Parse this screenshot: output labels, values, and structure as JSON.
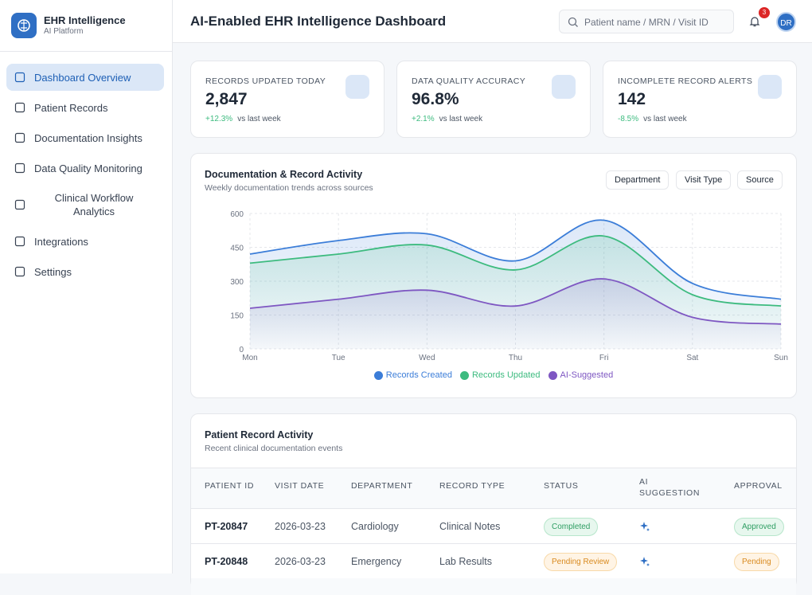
{
  "sidebar": {
    "brand": "EHR Intelligence",
    "subtitle": "AI Platform",
    "nav": [
      "Dashboard Overview",
      "Patient Records",
      "Documentation Insights",
      "Data Quality Monitoring",
      "Clinical Workflow Analytics",
      "Integrations",
      "Settings"
    ]
  },
  "header": {
    "title": "AI-Enabled EHR Intelligence Dashboard",
    "search_placeholder": "Patient name / MRN / Visit ID",
    "notifications": "3",
    "avatar": "DR"
  },
  "kpis": [
    {
      "label": "RECORDS UPDATED TODAY",
      "value": "2,847",
      "change": "+12.3%",
      "period": "vs last week"
    },
    {
      "label": "DATA QUALITY ACCURACY",
      "value": "96.8%",
      "change": "+2.1%",
      "period": "vs last week"
    },
    {
      "label": "INCOMPLETE RECORD ALERTS",
      "value": "142",
      "change": "-8.5%",
      "period": "vs last week"
    }
  ],
  "chart_data": {
    "type": "line",
    "title": "Documentation & Record Activity",
    "subtitle": "Weekly documentation trends across sources",
    "filters": [
      "Department",
      "Visit Type",
      "Source"
    ],
    "categories": [
      "Mon",
      "Tue",
      "Wed",
      "Thu",
      "Fri",
      "Sat",
      "Sun"
    ],
    "series": [
      {
        "name": "Records Created",
        "color": "#3b7dd8",
        "values": [
          420,
          480,
          510,
          390,
          570,
          290,
          220
        ]
      },
      {
        "name": "Records Updated",
        "color": "#3dbb7f",
        "values": [
          380,
          420,
          460,
          350,
          500,
          240,
          190
        ]
      },
      {
        "name": "AI-Suggested",
        "color": "#7e57c2",
        "values": [
          180,
          220,
          260,
          190,
          310,
          140,
          110
        ]
      }
    ],
    "ylim": [
      0,
      600
    ],
    "yticks": [
      0,
      150,
      300,
      450,
      600
    ],
    "grid": true
  },
  "table": {
    "title": "Patient Record Activity",
    "subtitle": "Recent clinical documentation events",
    "columns": [
      "PATIENT ID",
      "VISIT DATE",
      "DEPARTMENT",
      "RECORD TYPE",
      "STATUS",
      "AI SUGGESTION",
      "APPROVAL"
    ],
    "rows": [
      {
        "patient_id": "PT-20847",
        "visit_date": "2026-03-23",
        "department": "Cardiology",
        "record_type": "Clinical Notes",
        "status": "Completed",
        "approval": "Approved"
      },
      {
        "patient_id": "PT-20848",
        "visit_date": "2026-03-23",
        "department": "Emergency",
        "record_type": "Lab Results",
        "status": "Pending Review",
        "approval": "Pending"
      }
    ]
  }
}
